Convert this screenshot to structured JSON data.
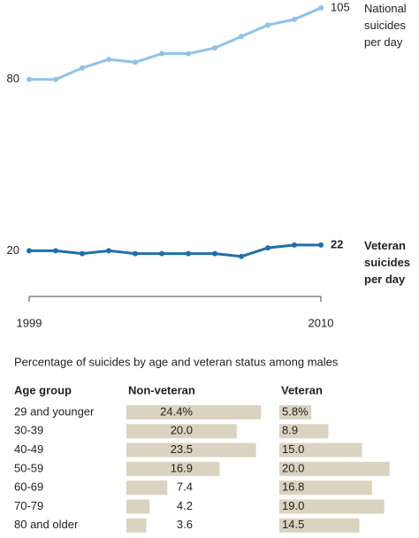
{
  "chart_data": [
    {
      "type": "line",
      "x": [
        1999,
        2000,
        2001,
        2002,
        2003,
        2004,
        2005,
        2006,
        2007,
        2008,
        2009,
        2010
      ],
      "series": [
        {
          "name": "National suicides per day",
          "color": "#8fc3ea",
          "values": [
            80,
            80,
            84,
            87,
            86,
            89,
            89,
            91,
            95,
            99,
            101,
            105
          ]
        },
        {
          "name": "Veteran suicides per day",
          "color": "#1f6fa8",
          "values": [
            20,
            20,
            19,
            20,
            19,
            19,
            19,
            19,
            18,
            21,
            22,
            22
          ]
        }
      ],
      "xlim": [
        1999,
        2010
      ],
      "xticks": [
        1999,
        2010
      ],
      "ylim": [
        4,
        105
      ]
    },
    {
      "type": "bar",
      "title": "Percentage of suicides by age and veteran status among males",
      "category_label": "Age group",
      "categories": [
        "29 and younger",
        "30-39",
        "40-49",
        "50-59",
        "60-69",
        "70-79",
        "80 and older"
      ],
      "series": [
        {
          "name": "Non-veteran",
          "color": "#d9d3bf",
          "values": [
            24.4,
            20.0,
            23.5,
            16.9,
            7.4,
            4.2,
            3.6
          ],
          "value_labels": [
            "24.4%",
            "20.0",
            "23.5",
            "16.9",
            "7.4",
            "4.2",
            "3.6"
          ]
        },
        {
          "name": "Veteran",
          "color": "#d9d3bf",
          "values": [
            5.8,
            8.9,
            15.0,
            20.0,
            16.8,
            19.0,
            14.5
          ],
          "value_labels": [
            "5.8%",
            "8.9",
            "15.0",
            "20.0",
            "16.8",
            "19.0",
            "14.5"
          ]
        }
      ]
    }
  ]
}
